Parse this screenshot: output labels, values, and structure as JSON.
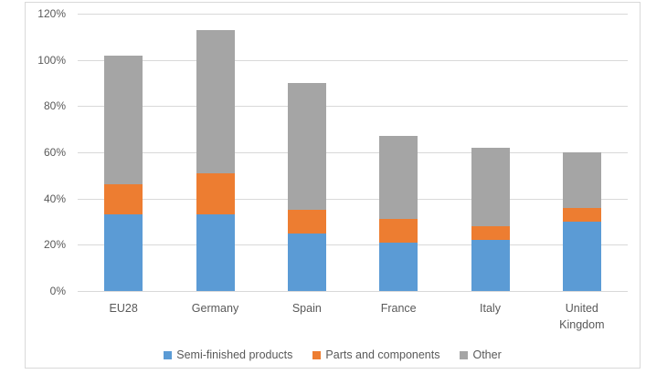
{
  "chart_data": {
    "type": "bar",
    "stacked": true,
    "title": "",
    "xlabel": "",
    "ylabel": "",
    "categories": [
      "EU28",
      "Germany",
      "Spain",
      "France",
      "Italy",
      "United Kingdom"
    ],
    "series": [
      {
        "name": "Semi-finished products",
        "color": "#5B9BD5",
        "values": [
          33,
          33,
          25,
          21,
          22,
          30
        ]
      },
      {
        "name": "Parts and components",
        "color": "#ED7D31",
        "values": [
          13,
          18,
          10,
          10,
          6,
          6
        ]
      },
      {
        "name": "Other",
        "color": "#A5A5A5",
        "values": [
          56,
          62,
          55,
          36,
          34,
          24
        ]
      }
    ],
    "ylim": [
      0,
      120
    ],
    "y_ticks": [
      "0%",
      "20%",
      "40%",
      "60%",
      "80%",
      "100%",
      "120%"
    ],
    "grid": true,
    "legend_position": "bottom",
    "colors": {
      "gridline": "#D9D9D9",
      "chart_border": "#D9D9D9",
      "text": "#595959",
      "background": "#FFFFFF"
    }
  }
}
